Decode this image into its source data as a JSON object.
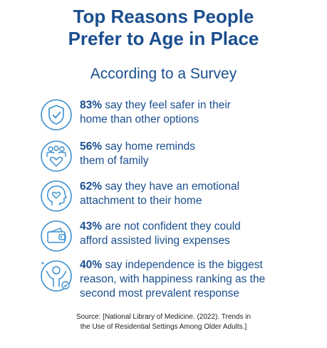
{
  "header": {
    "title_line1": "Top Reasons People",
    "title_line2": "Prefer to Age in Place",
    "subtitle": "According to a Survey"
  },
  "reasons": [
    {
      "pct": "83%",
      "line1": " say they feel safer in their",
      "line2": "home than other options",
      "icon": "shield-check-icon"
    },
    {
      "pct": "56%",
      "line1": " say home reminds",
      "line2": "them of family",
      "icon": "family-heart-icon"
    },
    {
      "pct": "62%",
      "line1": " say they have an emotional",
      "line2": "attachment to their home",
      "icon": "head-heart-icon"
    },
    {
      "pct": "43%",
      "line1": " are not confident they could",
      "line2": "afford assisted living expenses",
      "icon": "wallet-icon"
    },
    {
      "pct": "40%",
      "line1": " say independence is the biggest",
      "line2": "reason, with happiness ranking as the",
      "line3": "second most prevalent response",
      "icon": "happy-person-icon"
    }
  ],
  "source": {
    "line1": "Source: [National Library of Medicine. (2022). Trends in",
    "line2": "the Use of Residential Settings Among Older Adults.]"
  },
  "colors": {
    "primary": "#1b4f8f",
    "icon": "#3a8fd0"
  }
}
